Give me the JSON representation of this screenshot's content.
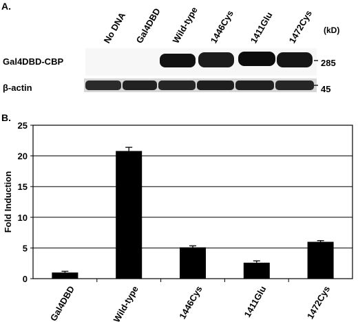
{
  "panel_a": {
    "label": "A.",
    "lanes": [
      "No DNA",
      "Gal4DBD",
      "Wild-type",
      "1446Cys",
      "1411Glu",
      "1472Cys"
    ],
    "unit_label": "(kD)",
    "rows": [
      {
        "label": "Gal4DBD-CBP",
        "marker": "285"
      },
      {
        "label": "β-actin",
        "marker": "45"
      }
    ]
  },
  "panel_b": {
    "label": "B."
  },
  "chart_data": {
    "type": "bar",
    "categories": [
      "Gal4DBD",
      "Wild-type",
      "1446Cys",
      "1411Glu",
      "1472Cys"
    ],
    "values": [
      1.0,
      20.8,
      5.1,
      2.6,
      6.0
    ],
    "errors": [
      0.2,
      0.6,
      0.25,
      0.3,
      0.2
    ],
    "title": "",
    "xlabel": "",
    "ylabel": "Fold Induction",
    "ylim": [
      0,
      25
    ],
    "yticks": [
      0,
      5,
      10,
      15,
      20,
      25
    ],
    "grid": true,
    "bar_color": "#000000"
  }
}
